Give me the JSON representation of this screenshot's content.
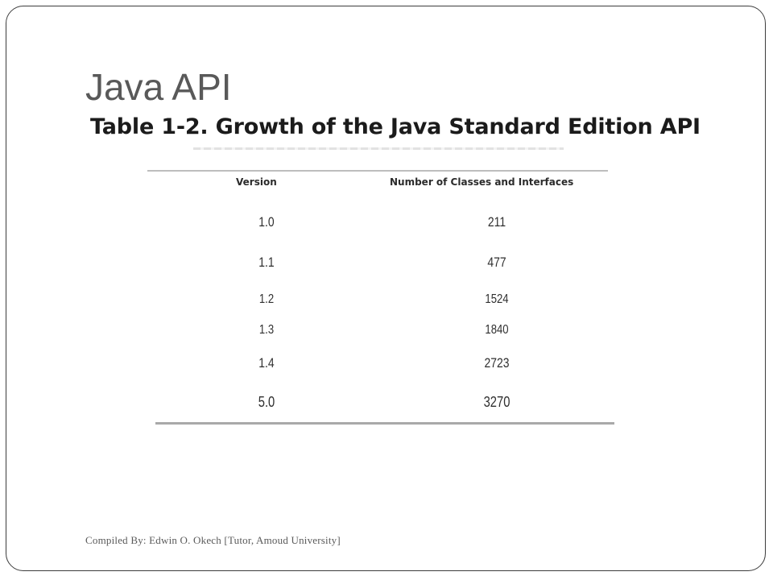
{
  "slide": {
    "title": "Java API",
    "table_caption": "Table 1-2. Growth of the Java Standard Edition API",
    "footer": "Compiled By: Edwin O. Okech [Tutor, Amoud University]"
  },
  "table": {
    "headers": [
      "Version",
      "Number of Classes and Interfaces"
    ],
    "rows": [
      {
        "version": "1.0",
        "count": "211"
      },
      {
        "version": "1.1",
        "count": "477"
      },
      {
        "version": "1.2",
        "count": "1524"
      },
      {
        "version": "1.3",
        "count": "1840"
      },
      {
        "version": "1.4",
        "count": "2723"
      },
      {
        "version": "5.0",
        "count": "3270"
      }
    ]
  }
}
